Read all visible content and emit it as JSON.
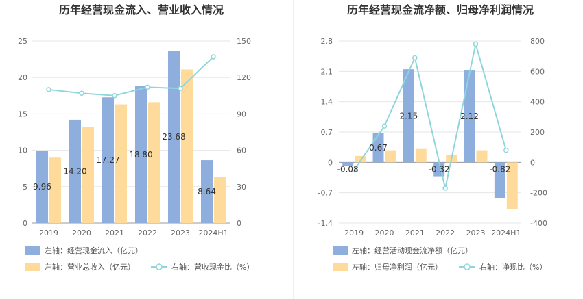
{
  "charts": [
    {
      "title": "历年经营现金流入、营业收入情况",
      "categories": [
        "2019",
        "2020",
        "2021",
        "2022",
        "2023",
        "2024H1"
      ],
      "left_axis": {
        "min": 0,
        "max": 25,
        "ticks": [
          "0",
          "5",
          "10",
          "15",
          "20",
          "25"
        ]
      },
      "right_axis": {
        "min": 0,
        "max": 150,
        "ticks": [
          "0",
          "30",
          "60",
          "90",
          "120",
          "150"
        ]
      },
      "legend": [
        "左轴：经营现金流入（亿元）",
        "左轴：营业总收入（亿元）",
        "右轴：营收现金比（%）"
      ]
    },
    {
      "title": "历年经营现金流净额、归母净利润情况",
      "categories": [
        "2019",
        "2020",
        "2021",
        "2022",
        "2023",
        "2024H1"
      ],
      "left_axis": {
        "min": -1.4,
        "max": 2.8,
        "ticks": [
          "-1.4",
          "-0.7",
          "0",
          "0.7",
          "1.4",
          "2.1",
          "2.8"
        ]
      },
      "right_axis": {
        "min": -400,
        "max": 800,
        "ticks": [
          "-400",
          "-200",
          "0",
          "200",
          "400",
          "600",
          "800"
        ]
      },
      "legend": [
        "左轴：经营活动现金流净额（亿元）",
        "左轴：归母净利润（亿元）",
        "右轴：净现比（%）"
      ]
    }
  ],
  "chart_data": [
    {
      "type": "bar",
      "title": "历年经营现金流入、营业收入情况",
      "categories": [
        "2019",
        "2020",
        "2021",
        "2022",
        "2023",
        "2024H1"
      ],
      "ylim_left": [
        0,
        25
      ],
      "ylim_right": [
        0,
        150
      ],
      "grid": true,
      "legend_position": "bottom",
      "series": [
        {
          "name": "左轴：经营现金流入（亿元）",
          "axis": "left",
          "type": "bar",
          "color": "#8eaedd",
          "values": [
            9.96,
            14.2,
            17.27,
            18.8,
            23.68,
            8.64
          ],
          "labels": [
            "9.96",
            "14.20",
            "17.27",
            "18.80",
            "23.68",
            "8.64"
          ]
        },
        {
          "name": "左轴：营业总收入（亿元）",
          "axis": "left",
          "type": "bar",
          "color": "#fedb9b",
          "values": [
            9.0,
            13.2,
            16.3,
            16.6,
            21.1,
            6.3
          ]
        },
        {
          "name": "右轴：营收现金比（%）",
          "axis": "right",
          "type": "line",
          "color": "#8fd6dc",
          "values": [
            110,
            107,
            105,
            112,
            111,
            137
          ]
        }
      ]
    },
    {
      "type": "bar",
      "title": "历年经营现金流净额、归母净利润情况",
      "categories": [
        "2019",
        "2020",
        "2021",
        "2022",
        "2023",
        "2024H1"
      ],
      "ylim_left": [
        -1.4,
        2.8
      ],
      "ylim_right": [
        -400,
        800
      ],
      "grid": true,
      "legend_position": "bottom",
      "series": [
        {
          "name": "左轴：经营活动现金流净额（亿元）",
          "axis": "left",
          "type": "bar",
          "color": "#8eaedd",
          "values": [
            -0.08,
            0.67,
            2.15,
            -0.32,
            2.12,
            -0.82
          ],
          "labels": [
            "-0.08",
            "0.67",
            "2.15",
            "-0.32",
            "2.12",
            "-0.82"
          ]
        },
        {
          "name": "左轴：归母净利润（亿元）",
          "axis": "left",
          "type": "bar",
          "color": "#fedb9b",
          "values": [
            0.15,
            0.28,
            0.31,
            0.18,
            0.28,
            -1.08
          ]
        },
        {
          "name": "右轴：净现比（%）",
          "axis": "right",
          "type": "line",
          "color": "#8fd6dc",
          "values": [
            -50,
            240,
            690,
            -170,
            780,
            80
          ]
        }
      ]
    }
  ]
}
